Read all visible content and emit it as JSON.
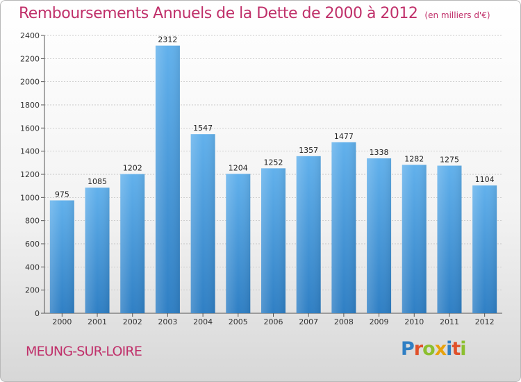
{
  "chart_data": {
    "type": "bar",
    "title": "Remboursements Annuels de la Dette de 2000 à 2012",
    "subtitle": "(en milliers d'€)",
    "categories": [
      "2000",
      "2001",
      "2002",
      "2003",
      "2004",
      "2005",
      "2006",
      "2007",
      "2008",
      "2009",
      "2010",
      "2011",
      "2012"
    ],
    "values": [
      975,
      1085,
      1202,
      2312,
      1547,
      1204,
      1252,
      1357,
      1477,
      1338,
      1282,
      1275,
      1104
    ],
    "ylim": [
      0,
      2400
    ],
    "yticks": [
      0,
      200,
      400,
      600,
      800,
      1000,
      1200,
      1400,
      1600,
      1800,
      2000,
      2200,
      2400
    ],
    "grid": true,
    "bar_color": "#4d9fde",
    "xlabel": "",
    "ylabel": ""
  },
  "footer": {
    "city": "MEUNG-SUR-LOIRE",
    "logo_letters": [
      {
        "ch": "P",
        "color": "#2f7fc4"
      },
      {
        "ch": "r",
        "color": "#e0502a"
      },
      {
        "ch": "o",
        "color": "#8cbf2f"
      },
      {
        "ch": "x",
        "color": "#e8a20c"
      },
      {
        "ch": "i",
        "color": "#2f7fc4"
      },
      {
        "ch": "t",
        "color": "#e0502a"
      },
      {
        "ch": "i",
        "color": "#8cbf2f"
      }
    ]
  },
  "colors": {
    "title": "#c0306a"
  }
}
